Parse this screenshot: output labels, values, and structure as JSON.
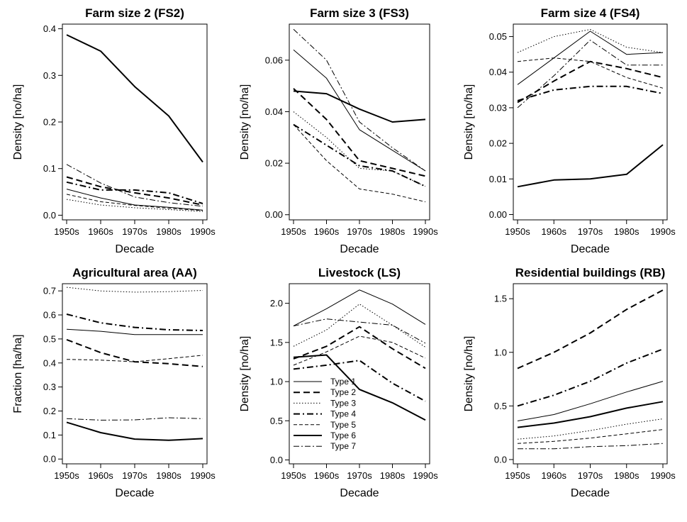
{
  "figure": {
    "legend_title": "",
    "series_names": [
      "Type 1",
      "Type 2",
      "Type 3",
      "Type 4",
      "Type 5",
      "Type 6",
      "Type 7"
    ],
    "line_color": "#000000"
  },
  "chart_data": [
    {
      "type": "line",
      "title": "Farm size 2 (FS2)",
      "xlabel": "Decade",
      "ylabel": "Density [no/ha]",
      "categories": [
        "1950s",
        "1960s",
        "1970s",
        "1980s",
        "1990s"
      ],
      "ylim": [
        -0.01,
        0.41
      ],
      "yticks": [
        "0.0",
        "0.1",
        "0.2",
        "0.3",
        "0.4"
      ],
      "legend": "none",
      "series": [
        {
          "name": "Type 1",
          "values": [
            0.056,
            0.037,
            0.022,
            0.017,
            0.011
          ]
        },
        {
          "name": "Type 2",
          "values": [
            0.082,
            0.061,
            0.048,
            0.037,
            0.022
          ]
        },
        {
          "name": "Type 3",
          "values": [
            0.034,
            0.022,
            0.016,
            0.012,
            0.008
          ]
        },
        {
          "name": "Type 4",
          "values": [
            0.071,
            0.054,
            0.054,
            0.048,
            0.025
          ]
        },
        {
          "name": "Type 5",
          "values": [
            0.045,
            0.029,
            0.021,
            0.015,
            0.01
          ]
        },
        {
          "name": "Type 6",
          "values": [
            0.387,
            0.352,
            0.276,
            0.213,
            0.114
          ]
        },
        {
          "name": "Type 7",
          "values": [
            0.109,
            0.069,
            0.039,
            0.027,
            0.019
          ]
        }
      ]
    },
    {
      "type": "line",
      "title": "Farm size 3 (FS3)",
      "xlabel": "Decade",
      "ylabel": "Density [no/ha]",
      "categories": [
        "1950s",
        "1960s",
        "1970s",
        "1980s",
        "1990s"
      ],
      "ylim": [
        -0.002,
        0.074
      ],
      "yticks": [
        "0.00",
        "0.02",
        "0.04",
        "0.06"
      ],
      "legend": "none",
      "series": [
        {
          "name": "Type 1",
          "values": [
            0.064,
            0.053,
            0.033,
            0.025,
            0.017
          ]
        },
        {
          "name": "Type 2",
          "values": [
            0.049,
            0.037,
            0.021,
            0.018,
            0.015
          ]
        },
        {
          "name": "Type 3",
          "values": [
            0.04,
            0.03,
            0.018,
            0.017,
            0.011
          ]
        },
        {
          "name": "Type 4",
          "values": [
            0.035,
            0.027,
            0.019,
            0.017,
            0.011
          ]
        },
        {
          "name": "Type 5",
          "values": [
            0.035,
            0.021,
            0.01,
            0.008,
            0.005
          ]
        },
        {
          "name": "Type 6",
          "values": [
            0.048,
            0.047,
            0.041,
            0.036,
            0.037
          ]
        },
        {
          "name": "Type 7",
          "values": [
            0.072,
            0.06,
            0.036,
            0.026,
            0.017
          ]
        }
      ]
    },
    {
      "type": "line",
      "title": "Farm size 4 (FS4)",
      "xlabel": "Decade",
      "ylabel": "Density [no/ha]",
      "categories": [
        "1950s",
        "1960s",
        "1970s",
        "1980s",
        "1990s"
      ],
      "ylim": [
        -0.0015,
        0.0535
      ],
      "yticks": [
        "0.00",
        "0.01",
        "0.02",
        "0.03",
        "0.04",
        "0.05"
      ],
      "legend": "none",
      "series": [
        {
          "name": "Type 1",
          "values": [
            0.0365,
            0.044,
            0.0515,
            0.045,
            0.0455
          ]
        },
        {
          "name": "Type 2",
          "values": [
            0.0315,
            0.0375,
            0.043,
            0.041,
            0.0385
          ]
        },
        {
          "name": "Type 3",
          "values": [
            0.0455,
            0.05,
            0.052,
            0.047,
            0.0455
          ]
        },
        {
          "name": "Type 4",
          "values": [
            0.032,
            0.035,
            0.036,
            0.036,
            0.034
          ]
        },
        {
          "name": "Type 5",
          "values": [
            0.043,
            0.044,
            0.043,
            0.0385,
            0.0355
          ]
        },
        {
          "name": "Type 6",
          "values": [
            0.0078,
            0.0097,
            0.01,
            0.0113,
            0.0196
          ]
        },
        {
          "name": "Type 7",
          "values": [
            0.03,
            0.039,
            0.049,
            0.042,
            0.042
          ]
        }
      ]
    },
    {
      "type": "line",
      "title": "Agricultural area (AA)",
      "xlabel": "Decade",
      "ylabel": "Fraction [ha/ha]",
      "categories": [
        "1950s",
        "1960s",
        "1970s",
        "1980s",
        "1990s"
      ],
      "ylim": [
        -0.02,
        0.73
      ],
      "yticks": [
        "0.0",
        "0.1",
        "0.2",
        "0.3",
        "0.4",
        "0.5",
        "0.6",
        "0.7"
      ],
      "legend": "none",
      "series": [
        {
          "name": "Type 1",
          "values": [
            0.54,
            0.532,
            0.518,
            0.518,
            0.518
          ]
        },
        {
          "name": "Type 2",
          "values": [
            0.497,
            0.443,
            0.405,
            0.397,
            0.385
          ]
        },
        {
          "name": "Type 3",
          "values": [
            0.715,
            0.7,
            0.695,
            0.697,
            0.702
          ]
        },
        {
          "name": "Type 4",
          "values": [
            0.603,
            0.567,
            0.548,
            0.538,
            0.535
          ]
        },
        {
          "name": "Type 5",
          "values": [
            0.415,
            0.412,
            0.405,
            0.418,
            0.432
          ]
        },
        {
          "name": "Type 6",
          "values": [
            0.153,
            0.11,
            0.083,
            0.078,
            0.085
          ]
        },
        {
          "name": "Type 7",
          "values": [
            0.168,
            0.162,
            0.163,
            0.172,
            0.168
          ]
        }
      ]
    },
    {
      "type": "line",
      "title": "Livestock (LS)",
      "xlabel": "Decade",
      "ylabel": "Density [no/ha]",
      "categories": [
        "1950s",
        "1960s",
        "1970s",
        "1980s",
        "1990s"
      ],
      "ylim": [
        -0.05,
        2.25
      ],
      "yticks": [
        "0.0",
        "0.5",
        "1.0",
        "1.5",
        "2.0"
      ],
      "legend": "bottom-left",
      "series": [
        {
          "name": "Type 1",
          "values": [
            1.71,
            1.93,
            2.17,
            1.99,
            1.73
          ]
        },
        {
          "name": "Type 2",
          "values": [
            1.29,
            1.45,
            1.7,
            1.42,
            1.17
          ]
        },
        {
          "name": "Type 3",
          "values": [
            1.45,
            1.66,
            1.99,
            1.72,
            1.44
          ]
        },
        {
          "name": "Type 4",
          "values": [
            1.16,
            1.21,
            1.27,
            0.98,
            0.75
          ]
        },
        {
          "name": "Type 5",
          "values": [
            1.21,
            1.38,
            1.58,
            1.5,
            1.3
          ]
        },
        {
          "name": "Type 6",
          "values": [
            1.31,
            1.34,
            0.9,
            0.73,
            0.51
          ]
        },
        {
          "name": "Type 7",
          "values": [
            1.71,
            1.8,
            1.76,
            1.72,
            1.49
          ]
        }
      ]
    },
    {
      "type": "line",
      "title": "Residential buildings (RB)",
      "xlabel": "Decade",
      "ylabel": "Density [no/ha]",
      "categories": [
        "1950s",
        "1960s",
        "1970s",
        "1980s",
        "1990s"
      ],
      "ylim": [
        -0.04,
        1.64
      ],
      "yticks": [
        "0.0",
        "0.5",
        "1.0",
        "1.5"
      ],
      "legend": "none",
      "series": [
        {
          "name": "Type 1",
          "values": [
            0.36,
            0.42,
            0.52,
            0.63,
            0.73
          ]
        },
        {
          "name": "Type 2",
          "values": [
            0.85,
            1.0,
            1.18,
            1.4,
            1.58
          ]
        },
        {
          "name": "Type 3",
          "values": [
            0.19,
            0.22,
            0.27,
            0.33,
            0.38
          ]
        },
        {
          "name": "Type 4",
          "values": [
            0.5,
            0.6,
            0.73,
            0.9,
            1.03
          ]
        },
        {
          "name": "Type 5",
          "values": [
            0.15,
            0.17,
            0.2,
            0.24,
            0.28
          ]
        },
        {
          "name": "Type 6",
          "values": [
            0.3,
            0.34,
            0.4,
            0.48,
            0.54
          ]
        },
        {
          "name": "Type 7",
          "values": [
            0.1,
            0.1,
            0.12,
            0.13,
            0.15
          ]
        }
      ]
    }
  ]
}
